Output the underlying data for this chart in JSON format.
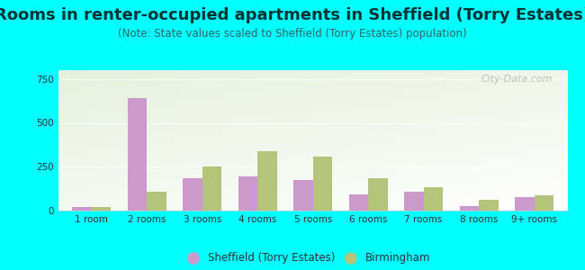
{
  "title": "Rooms in renter-occupied apartments in Sheffield (Torry Estates)",
  "subtitle": "(Note: State values scaled to Sheffield (Torry Estates) population)",
  "categories": [
    "1 room",
    "2 rooms",
    "3 rooms",
    "4 rooms",
    "5 rooms",
    "6 rooms",
    "7 rooms",
    "8 rooms",
    "9+ rooms"
  ],
  "sheffield_values": [
    18,
    640,
    185,
    195,
    175,
    90,
    110,
    25,
    75
  ],
  "birmingham_values": [
    22,
    108,
    250,
    340,
    310,
    185,
    135,
    60,
    85
  ],
  "sheffield_color": "#cc99cc",
  "birmingham_color": "#b5c47a",
  "bar_width": 0.35,
  "ylim": [
    0,
    800
  ],
  "yticks": [
    0,
    250,
    500,
    750
  ],
  "background_color": "#00ffff",
  "watermark": "City-Data.com",
  "legend_sheffield": "Sheffield (Torry Estates)",
  "legend_birmingham": "Birmingham",
  "title_fontsize": 13,
  "subtitle_fontsize": 8.5,
  "tick_fontsize": 7.5
}
